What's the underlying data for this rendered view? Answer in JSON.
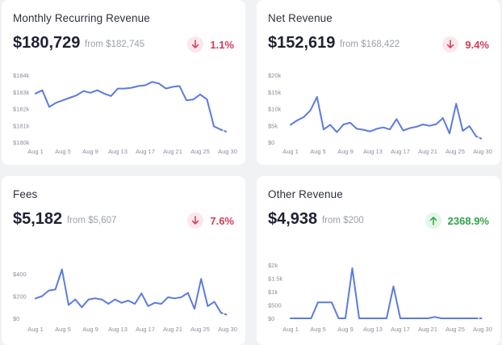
{
  "colors": {
    "line": "#5b7be0",
    "down": "#d23b57",
    "up": "#2fa34a"
  },
  "chart_data": [
    {
      "type": "line",
      "title": "Monthly Recurring Revenue",
      "value": "$180,729",
      "from": "from $182,745",
      "change": "1.1%",
      "direction": "down",
      "icon": "arrow-down-icon",
      "x_ticks": [
        "Aug 1",
        "Aug 5",
        "Aug 9",
        "Aug 13",
        "Aug 17",
        "Aug 21",
        "Aug 25",
        "Aug 30"
      ],
      "y_ticks": [
        "$180k",
        "$181k",
        "$182k",
        "$183k",
        "$184k"
      ],
      "ylim": [
        180000,
        184000
      ],
      "values": [
        182900,
        183100,
        182100,
        182350,
        182500,
        182650,
        182800,
        183050,
        182950,
        183100,
        182900,
        182750,
        183200,
        183200,
        183250,
        183350,
        183400,
        183600,
        183500,
        183200,
        183300,
        183350,
        182500,
        182550,
        182850,
        182550,
        180950,
        180750,
        180600
      ]
    },
    {
      "type": "line",
      "title": "Net Revenue",
      "value": "$152,619",
      "from": "from $168,422",
      "change": "9.4%",
      "direction": "down",
      "icon": "arrow-down-icon",
      "x_ticks": [
        "Aug 1",
        "Aug 5",
        "Aug 9",
        "Aug 13",
        "Aug 17",
        "Aug 21",
        "Aug 25",
        "Aug 30"
      ],
      "y_ticks": [
        "$0",
        "$5k",
        "$10k",
        "$15k",
        "$20k"
      ],
      "ylim": [
        0,
        20000
      ],
      "values": [
        5200,
        6500,
        7500,
        9500,
        13500,
        3800,
        5200,
        3000,
        5300,
        5800,
        4000,
        3700,
        3200,
        4000,
        4400,
        3800,
        6900,
        3500,
        4200,
        4600,
        5300,
        4900,
        5400,
        7200,
        2600,
        11500,
        3400,
        4800,
        1800,
        900
      ]
    },
    {
      "type": "line",
      "title": "Fees",
      "value": "$5,182",
      "from": "from $5,607",
      "change": "7.6%",
      "direction": "down",
      "icon": "arrow-down-icon",
      "x_ticks": [
        "Aug 1",
        "Aug 5",
        "Aug 9",
        "Aug 13",
        "Aug 17",
        "Aug 21",
        "Aug 25",
        "Aug 30"
      ],
      "y_ticks": [
        "$0",
        "$200",
        "$400"
      ],
      "ylim": [
        0,
        480
      ],
      "values": [
        180,
        200,
        250,
        260,
        440,
        120,
        170,
        100,
        170,
        180,
        170,
        130,
        170,
        140,
        160,
        130,
        225,
        110,
        140,
        130,
        190,
        180,
        190,
        230,
        85,
        355,
        110,
        150,
        50,
        30
      ]
    },
    {
      "type": "line",
      "title": "Other Revenue",
      "value": "$4,938",
      "from": "from $200",
      "change": "2368.9%",
      "direction": "up",
      "icon": "arrow-up-icon",
      "x_ticks": [
        "Aug 1",
        "Aug 5",
        "Aug 9",
        "Aug 13",
        "Aug 17",
        "Aug 21",
        "Aug 25",
        "Aug 30"
      ],
      "y_ticks": [
        "$0",
        "$500",
        "$1k",
        "$1.5k",
        "$2k"
      ],
      "ylim": [
        0,
        2000
      ],
      "values": [
        0,
        0,
        0,
        0,
        600,
        600,
        600,
        0,
        0,
        1880,
        0,
        0,
        0,
        0,
        0,
        1200,
        0,
        0,
        0,
        0,
        0,
        50,
        0,
        0,
        0,
        0,
        0,
        0,
        0
      ]
    }
  ]
}
